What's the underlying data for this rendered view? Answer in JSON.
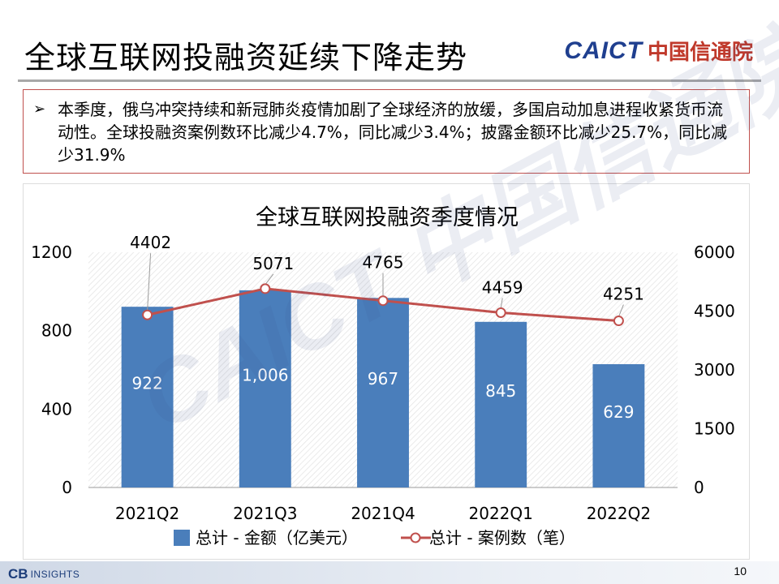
{
  "slide": {
    "title": "全球互联网投融资延续下降走势",
    "logo_latin": "CAICT",
    "logo_cn": "中国信通院",
    "watermark": "CAICT 中国信通院",
    "footer_brand": "CB",
    "footer_brand_sub": "INSIGHTS",
    "page_number": "10"
  },
  "summary": {
    "bullet": "➢",
    "text": "本季度，俄乌冲突持续和新冠肺炎疫情加剧了全球经济的放缓，多国启动加息进程收紧货币流动性。全球投融资案例数环比减少4.7%，同比减少3.4%；披露金额环比减少25.7%，同比减少31.9%"
  },
  "colors": {
    "bar": "#4a7ebb",
    "line": "#c0504d",
    "box_border": "#c0504d",
    "logo_blue": "#1f3f8f",
    "logo_red": "#c0392b"
  },
  "chart_data": {
    "type": "bar",
    "title": "全球互联网投融资季度情况",
    "categories": [
      "2021Q2",
      "2021Q3",
      "2021Q4",
      "2022Q1",
      "2022Q2"
    ],
    "series": [
      {
        "name": "总计 - 金额（亿美元）",
        "type": "bar",
        "axis": "left",
        "values": [
          922,
          1006,
          967,
          845,
          629
        ],
        "labels": [
          "922",
          "1,006",
          "967",
          "845",
          "629"
        ]
      },
      {
        "name": "总计 - 案例数（笔）",
        "type": "line",
        "axis": "right",
        "values": [
          4402,
          5071,
          4765,
          4459,
          4251
        ],
        "labels": [
          "4402",
          "5071",
          "4765",
          "4459",
          "4251"
        ]
      }
    ],
    "y_left": {
      "min": 0,
      "max": 1200,
      "ticks": [
        0,
        400,
        800,
        1200
      ]
    },
    "y_right": {
      "min": 0,
      "max": 6000,
      "ticks": [
        0,
        1500,
        3000,
        4500,
        6000
      ]
    },
    "grid": false,
    "legend": "bottom"
  }
}
